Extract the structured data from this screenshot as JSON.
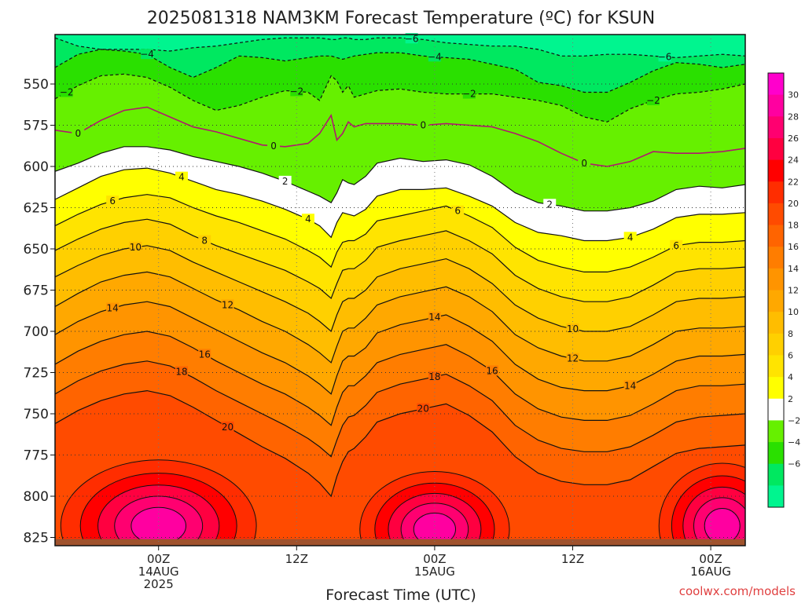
{
  "title": "2025081318 NAM3KM Forecast Temperature (ºC) for KSUN",
  "credit": "coolwx.com/models",
  "chart_data": {
    "type": "contour",
    "title": "2025081318 NAM3KM Forecast Temperature (ºC) for KSUN",
    "xlabel": "Forecast Time (UTC)",
    "ylabel": "",
    "x_range_hours": [
      -3,
      57
    ],
    "y_range_hpa": [
      520,
      830
    ],
    "y_ticks": [
      550,
      575,
      600,
      625,
      650,
      675,
      700,
      725,
      750,
      775,
      800,
      825
    ],
    "x_ticks": [
      {
        "hour": 6,
        "lines": [
          "00Z",
          "14AUG",
          "2025"
        ]
      },
      {
        "hour": 18,
        "lines": [
          "12Z"
        ]
      },
      {
        "hour": 30,
        "lines": [
          "00Z",
          "15AUG"
        ]
      },
      {
        "hour": 42,
        "lines": [
          "12Z"
        ]
      },
      {
        "hour": 54,
        "lines": [
          "00Z",
          "16AUG"
        ]
      }
    ],
    "grid": "dotted",
    "colorbar": {
      "placement": "right",
      "ticks": [
        "30",
        "28",
        "26",
        "24",
        "22",
        "20",
        "18",
        "16",
        "14",
        "12",
        "10",
        "8",
        "6",
        "4",
        "2",
        "−2",
        "−4",
        "−6"
      ],
      "levels": [
        -8,
        -6,
        -4,
        -2,
        2,
        4,
        6,
        8,
        10,
        12,
        14,
        16,
        18,
        20,
        22,
        24,
        26,
        28,
        30,
        32
      ],
      "colors": [
        "#00f58f",
        "#00e860",
        "#2ae000",
        "#66f000",
        "#ffffff",
        "#ffff00",
        "#ffe400",
        "#ffd000",
        "#ffbd00",
        "#ffa800",
        "#ff9400",
        "#ff7d00",
        "#ff6400",
        "#ff4b00",
        "#ff2d00",
        "#ff0000",
        "#ff0040",
        "#ff0070",
        "#ff00a0",
        "#ff00cc"
      ]
    },
    "contour_label_levels": [
      -6,
      -4,
      -2,
      0,
      2,
      4,
      6,
      8,
      10,
      12,
      14,
      16,
      18,
      20
    ],
    "times_hours": [
      -3,
      -1,
      1,
      3,
      5,
      7,
      9,
      11,
      13,
      15,
      17,
      19,
      20,
      21,
      21.5,
      22,
      22.5,
      23,
      24,
      25,
      27,
      29,
      31,
      33,
      35,
      37,
      39,
      41,
      43,
      45,
      47,
      49,
      51,
      53,
      55,
      57
    ],
    "series": [
      {
        "level": -6,
        "p_hpa": [
          522,
          527,
          529,
          529,
          529,
          530,
          528,
          527,
          525,
          523,
          522,
          522,
          522,
          523,
          523,
          522,
          522,
          523,
          523,
          522,
          522,
          523,
          525,
          526,
          527,
          527,
          529,
          533,
          533,
          532,
          532,
          533,
          534,
          533,
          532,
          533
        ]
      },
      {
        "level": -4,
        "p_hpa": [
          540,
          532,
          529,
          530,
          532,
          540,
          546,
          540,
          533,
          534,
          536,
          534,
          533,
          533,
          534,
          535,
          534,
          533,
          532,
          531,
          531,
          533,
          534,
          535,
          538,
          541,
          549,
          551,
          555,
          555,
          549,
          542,
          537,
          538,
          540,
          538
        ]
      },
      {
        "level": -2,
        "p_hpa": [
          559,
          551,
          545,
          544,
          546,
          552,
          560,
          566,
          563,
          558,
          554,
          555,
          560,
          545,
          548,
          555,
          551,
          558,
          556,
          554,
          553,
          555,
          556,
          556,
          556,
          558,
          560,
          563,
          570,
          573,
          565,
          560,
          556,
          555,
          553,
          550
        ]
      },
      {
        "level": 0,
        "p_hpa": [
          578,
          580,
          572,
          566,
          564,
          570,
          576,
          579,
          583,
          587,
          588,
          586,
          580,
          569,
          584,
          580,
          573,
          576,
          574,
          574,
          574,
          575,
          574,
          575,
          576,
          580,
          585,
          592,
          598,
          600,
          597,
          591,
          592,
          592,
          591,
          589
        ]
      },
      {
        "level": 2,
        "p_hpa": [
          603,
          598,
          592,
          588,
          588,
          590,
          594,
          597,
          600,
          604,
          609,
          615,
          618,
          622,
          616,
          608,
          610,
          611,
          606,
          598,
          595,
          597,
          596,
          599,
          606,
          616,
          622,
          624,
          627,
          627,
          625,
          621,
          614,
          612,
          613,
          611
        ]
      },
      {
        "level": 4,
        "p_hpa": [
          620,
          613,
          606,
          602,
          601,
          604,
          609,
          614,
          617,
          621,
          626,
          632,
          636,
          643,
          634,
          628,
          629,
          630,
          626,
          618,
          614,
          614,
          613,
          618,
          624,
          634,
          640,
          642,
          645,
          645,
          643,
          638,
          631,
          629,
          629,
          628
        ]
      },
      {
        "level": 6,
        "p_hpa": [
          636,
          629,
          623,
          619,
          617,
          619,
          625,
          630,
          634,
          639,
          644,
          651,
          655,
          661,
          652,
          646,
          645,
          645,
          641,
          633,
          630,
          627,
          624,
          630,
          637,
          649,
          657,
          661,
          664,
          664,
          661,
          655,
          648,
          646,
          646,
          645
        ]
      },
      {
        "level": 8,
        "p_hpa": [
          651,
          644,
          638,
          634,
          632,
          635,
          642,
          648,
          653,
          658,
          663,
          670,
          674,
          680,
          671,
          663,
          662,
          662,
          657,
          649,
          645,
          642,
          639,
          645,
          653,
          666,
          674,
          679,
          682,
          682,
          679,
          672,
          664,
          662,
          662,
          661
        ]
      },
      {
        "level": 10,
        "p_hpa": [
          667,
          660,
          654,
          650,
          648,
          651,
          658,
          664,
          670,
          676,
          682,
          689,
          694,
          700,
          690,
          682,
          680,
          680,
          675,
          667,
          662,
          659,
          656,
          662,
          671,
          684,
          692,
          697,
          700,
          700,
          697,
          690,
          682,
          680,
          680,
          679
        ]
      },
      {
        "level": 12,
        "p_hpa": [
          685,
          677,
          670,
          666,
          664,
          667,
          674,
          681,
          687,
          694,
          700,
          708,
          713,
          719,
          709,
          700,
          698,
          698,
          692,
          684,
          679,
          676,
          673,
          679,
          688,
          702,
          710,
          715,
          718,
          718,
          715,
          708,
          700,
          698,
          698,
          697
        ]
      },
      {
        "level": 14,
        "p_hpa": [
          702,
          694,
          688,
          684,
          682,
          685,
          692,
          699,
          706,
          713,
          719,
          727,
          732,
          738,
          727,
          718,
          715,
          715,
          710,
          701,
          696,
          693,
          690,
          697,
          706,
          720,
          729,
          734,
          736,
          736,
          733,
          726,
          718,
          715,
          715,
          714
        ]
      },
      {
        "level": 16,
        "p_hpa": [
          720,
          712,
          706,
          702,
          700,
          703,
          710,
          718,
          725,
          732,
          738,
          746,
          751,
          757,
          746,
          737,
          733,
          733,
          727,
          719,
          714,
          711,
          708,
          715,
          724,
          738,
          747,
          752,
          754,
          754,
          751,
          744,
          736,
          733,
          733,
          732
        ]
      },
      {
        "level": 18,
        "p_hpa": [
          738,
          730,
          724,
          720,
          718,
          721,
          728,
          736,
          743,
          750,
          757,
          765,
          770,
          776,
          766,
          757,
          752,
          751,
          745,
          737,
          732,
          729,
          726,
          733,
          742,
          757,
          766,
          771,
          773,
          773,
          770,
          763,
          755,
          752,
          751,
          750
        ]
      },
      {
        "level": 20,
        "p_hpa": [
          756,
          748,
          742,
          738,
          736,
          739,
          746,
          754,
          762,
          770,
          777,
          786,
          792,
          800,
          788,
          779,
          773,
          771,
          764,
          755,
          750,
          747,
          744,
          751,
          761,
          776,
          786,
          791,
          793,
          793,
          790,
          782,
          774,
          771,
          770,
          769
        ]
      }
    ]
  },
  "ground_color": "#a0522d"
}
